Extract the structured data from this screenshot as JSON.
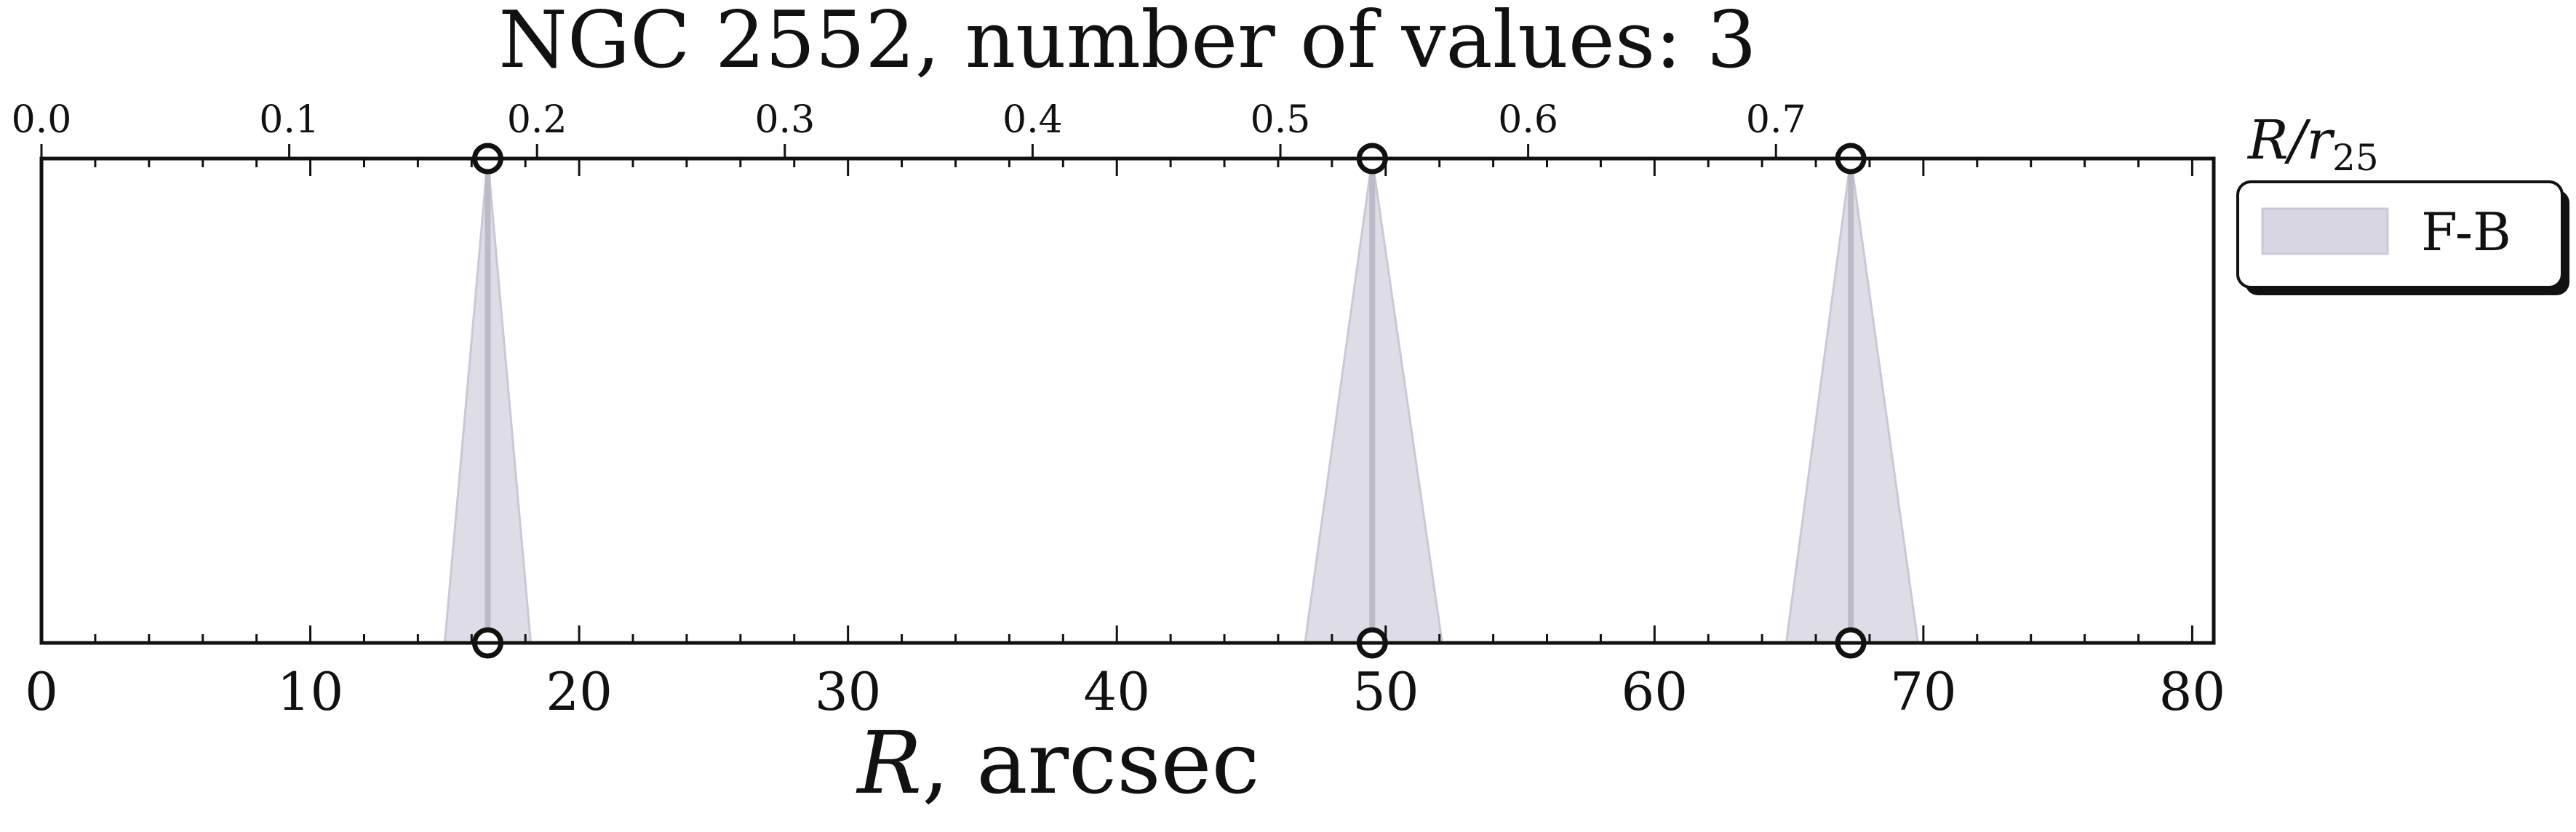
{
  "chart_data": {
    "type": "area",
    "title": "NGC 2552, number of values: 3",
    "xlabel": {
      "main": "R",
      "rest": ", arcsec"
    },
    "top_axis_label": {
      "main": "R/r",
      "sub": "25"
    },
    "xlim": [
      0,
      80.8
    ],
    "x_ticks": [
      "0",
      "10",
      "20",
      "30",
      "40",
      "50",
      "60",
      "70",
      "80"
    ],
    "top_axis": {
      "scale_factor": 0.01085,
      "ticks": [
        "0.0",
        "0.1",
        "0.2",
        "0.3",
        "0.4",
        "0.5",
        "0.6",
        "0.7"
      ]
    },
    "series": [
      {
        "name": "F-B",
        "color": "#d8d6e2",
        "points": [
          {
            "x": 16.6,
            "low": 15.0,
            "high": 18.2
          },
          {
            "x": 49.5,
            "low": 47.0,
            "high": 52.1
          },
          {
            "x": 67.3,
            "low": 64.9,
            "high": 69.8
          }
        ]
      }
    ],
    "marker_color": "#111111",
    "legend_position": "upper-right-outside",
    "grid": false
  }
}
